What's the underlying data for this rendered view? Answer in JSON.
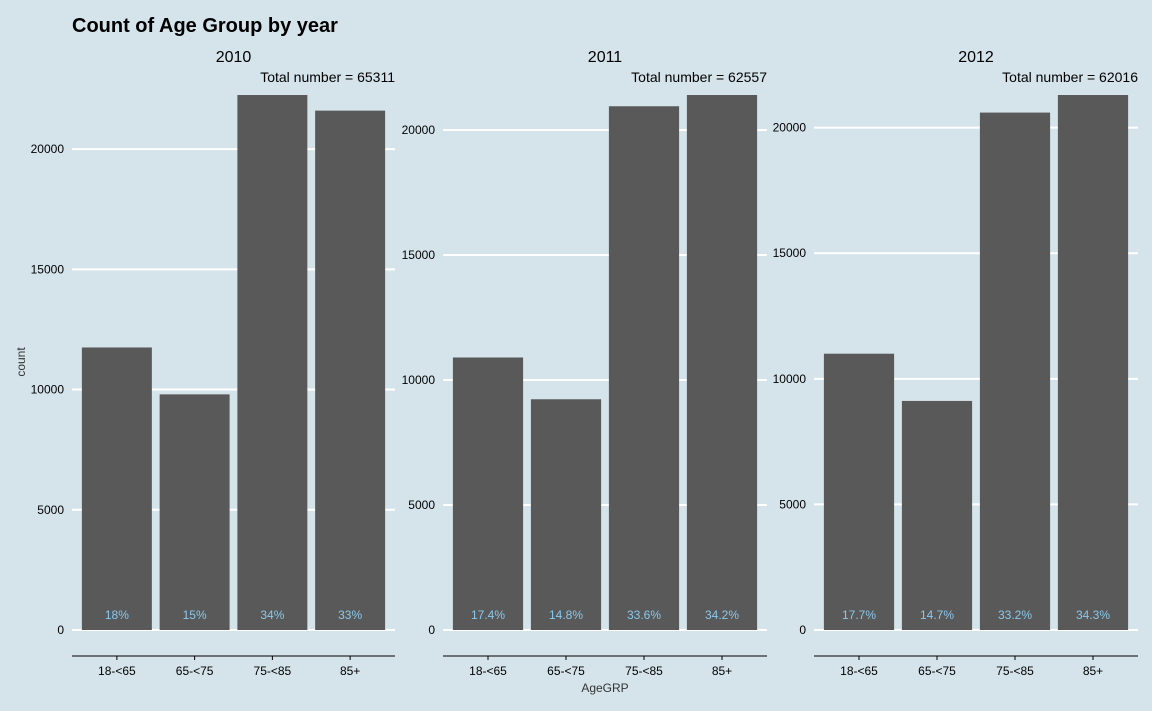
{
  "chart_data": {
    "type": "bar",
    "title": "Count of Age Group by year",
    "xlabel": "AgeGRP",
    "ylabel": "count",
    "categories": [
      "18-<65",
      "65-<75",
      "75-<85",
      "85+"
    ],
    "colors": {
      "background": "#d5e4eb",
      "bar": "#595959",
      "grid": "#ffffff",
      "percent_label": "#8ac8ec"
    },
    "grid": true,
    "facets": [
      {
        "label": "2010",
        "annotation": "Total number = 65311",
        "values": [
          11750,
          9800,
          22250,
          21600
        ],
        "percent_labels": [
          "18%",
          "15%",
          "34%",
          "33%"
        ],
        "y_ticks": [
          0,
          5000,
          10000,
          15000,
          20000
        ],
        "ylim": [
          0,
          22250
        ]
      },
      {
        "label": "2011",
        "annotation": "Total number = 62557",
        "values": [
          10900,
          9230,
          20950,
          21400
        ],
        "percent_labels": [
          "17.4%",
          "14.8%",
          "33.6%",
          "34.2%"
        ],
        "y_ticks": [
          0,
          5000,
          10000,
          15000,
          20000
        ],
        "ylim": [
          0,
          21400
        ]
      },
      {
        "label": "2012",
        "annotation": "Total number = 62016",
        "values": [
          11000,
          9120,
          20600,
          21300
        ],
        "percent_labels": [
          "17.7%",
          "14.7%",
          "33.2%",
          "34.3%"
        ],
        "y_ticks": [
          0,
          5000,
          10000,
          15000,
          20000
        ],
        "ylim": [
          0,
          21300
        ]
      }
    ]
  }
}
